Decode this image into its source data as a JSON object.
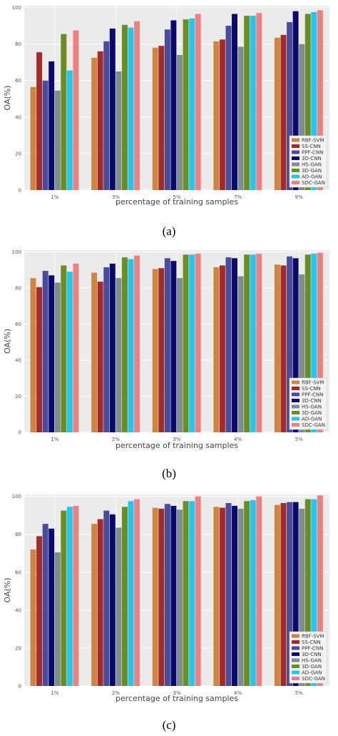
{
  "chart_data": [
    {
      "type": "bar",
      "caption": "(a)",
      "xlabel": "percentage of training samples",
      "ylabel": "OA(%)",
      "ylim": [
        0,
        101
      ],
      "yticks": [
        0,
        20,
        40,
        60,
        80,
        100
      ],
      "grid": true,
      "legend_position": "bottom-right",
      "categories": [
        "1%",
        "3%",
        "5%",
        "7%",
        "9%"
      ],
      "series": [
        {
          "name": "RBF-SVM",
          "color": "#cd853f",
          "values": [
            56.5,
            72.5,
            78,
            81.5,
            83.5
          ]
        },
        {
          "name": "SS-CNN",
          "color": "#a52a2a",
          "values": [
            75.5,
            76,
            79,
            82.5,
            85
          ]
        },
        {
          "name": "PPF-CNN",
          "color": "#4b4b9b",
          "values": [
            60,
            81.5,
            88,
            90,
            92
          ]
        },
        {
          "name": "3D-CNN",
          "color": "#0a0a6e",
          "values": [
            70.5,
            88.5,
            93,
            96.5,
            98
          ]
        },
        {
          "name": "HS-GAN",
          "color": "#7f8c8d",
          "values": [
            54.5,
            65,
            74,
            78.5,
            80
          ]
        },
        {
          "name": "3D-GAN",
          "color": "#6b8e23",
          "values": [
            85.5,
            90.5,
            93.5,
            95.5,
            96.5
          ]
        },
        {
          "name": "AD-GAN",
          "color": "#1ec8f0",
          "values": [
            65.5,
            89,
            94,
            95.5,
            97.5
          ]
        },
        {
          "name": "SDC-GAN",
          "color": "#f08080",
          "values": [
            87.5,
            92.5,
            96.5,
            97,
            98.5
          ]
        }
      ]
    },
    {
      "type": "bar",
      "caption": "(b)",
      "xlabel": "percentage of training samples",
      "ylabel": "OA(%)",
      "ylim": [
        0,
        101
      ],
      "yticks": [
        0,
        20,
        40,
        60,
        80,
        100
      ],
      "grid": true,
      "legend_position": "bottom-right",
      "categories": [
        "1%",
        "2%",
        "3%",
        "4%",
        "5%"
      ],
      "series": [
        {
          "name": "RBF-SVM",
          "color": "#cd853f",
          "values": [
            85.5,
            88.5,
            90.5,
            91.5,
            93
          ]
        },
        {
          "name": "SS-CNN",
          "color": "#a52a2a",
          "values": [
            80.5,
            83.5,
            91,
            92.5,
            92.5
          ]
        },
        {
          "name": "PPF-CNN",
          "color": "#4b4b9b",
          "values": [
            89.5,
            91.5,
            96.5,
            97,
            97.5
          ]
        },
        {
          "name": "3D-CNN",
          "color": "#0a0a6e",
          "values": [
            87,
            93.5,
            95,
            96.5,
            96.5
          ]
        },
        {
          "name": "HS-GAN",
          "color": "#7f8c8d",
          "values": [
            83,
            85.5,
            85.5,
            86.5,
            87.5
          ]
        },
        {
          "name": "3D-GAN",
          "color": "#6b8e23",
          "values": [
            92.5,
            97,
            98.5,
            98.5,
            98.5
          ]
        },
        {
          "name": "AD-GAN",
          "color": "#1ec8f0",
          "values": [
            89,
            96,
            98.5,
            98.5,
            99
          ]
        },
        {
          "name": "SDC-GAN",
          "color": "#f08080",
          "values": [
            93.5,
            98,
            99,
            99,
            99.5
          ]
        }
      ]
    },
    {
      "type": "bar",
      "caption": "(c)",
      "xlabel": "percentage of training samples",
      "ylabel": "OA(%)",
      "ylim": [
        0,
        101
      ],
      "yticks": [
        0,
        20,
        40,
        60,
        80,
        100
      ],
      "grid": true,
      "legend_position": "bottom-right",
      "categories": [
        "1%",
        "2%",
        "3%",
        "4%",
        "5%"
      ],
      "series": [
        {
          "name": "RBF-SVM",
          "color": "#cd853f",
          "values": [
            72,
            85.5,
            94,
            94.5,
            95.5
          ]
        },
        {
          "name": "SS-CNN",
          "color": "#a52a2a",
          "values": [
            79,
            88,
            93.5,
            94,
            96.5
          ]
        },
        {
          "name": "PPF-CNN",
          "color": "#4b4b9b",
          "values": [
            85.5,
            92.5,
            96,
            96.5,
            97
          ]
        },
        {
          "name": "3D-CNN",
          "color": "#0a0a6e",
          "values": [
            83,
            90.5,
            95,
            95,
            97
          ]
        },
        {
          "name": "HS-GAN",
          "color": "#7f8c8d",
          "values": [
            70.5,
            83.5,
            93,
            93.5,
            93.5
          ]
        },
        {
          "name": "3D-GAN",
          "color": "#6b8e23",
          "values": [
            92.5,
            94.5,
            97.5,
            97.5,
            98.5
          ]
        },
        {
          "name": "AD-GAN",
          "color": "#1ec8f0",
          "values": [
            94.5,
            97.5,
            97.5,
            98,
            98.5
          ]
        },
        {
          "name": "SDC-GAN",
          "color": "#f08080",
          "values": [
            95,
            98.5,
            100,
            100,
            100.5
          ]
        }
      ]
    }
  ]
}
